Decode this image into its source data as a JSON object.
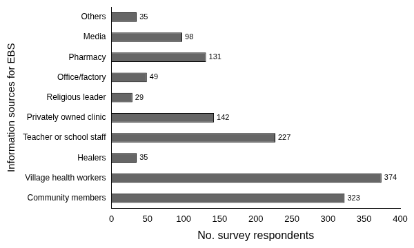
{
  "chart_data": {
    "type": "bar",
    "orientation": "horizontal",
    "x_label": "No. survey respondents",
    "y_label": "Information sources for EBS",
    "categories": [
      "Others",
      "Media",
      "Pharmacy",
      "Office/factory",
      "Religious leader",
      "Privately owned clinic",
      "Teacher or school staff",
      "Healers",
      "Village health workers",
      "Community members"
    ],
    "values": [
      35,
      98,
      131,
      49,
      29,
      142,
      227,
      35,
      374,
      323
    ],
    "color": "#666666",
    "xlim": [
      0,
      400
    ],
    "xticks": [
      0,
      50,
      100,
      150,
      200,
      250,
      300,
      350,
      400
    ],
    "grid": false,
    "data_labels": true
  }
}
